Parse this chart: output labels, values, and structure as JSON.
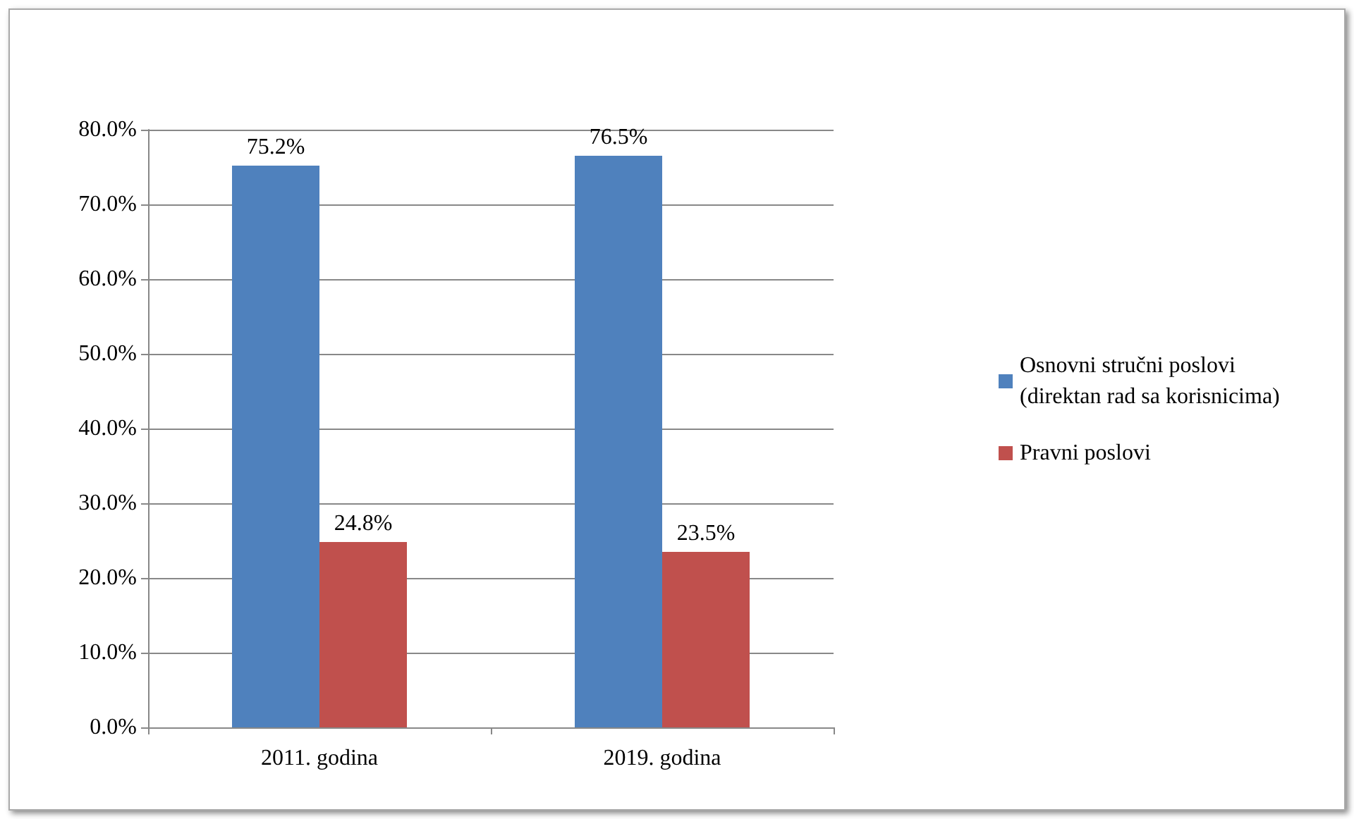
{
  "chart_data": {
    "type": "bar",
    "categories": [
      "2011. godina",
      "2019. godina"
    ],
    "series": [
      {
        "name": "Osnovni stručni poslovi (direktan rad sa korisnicima)",
        "color": "#4f81bd",
        "values": [
          75.2,
          76.5
        ],
        "value_labels": [
          "75.2%",
          "76.5%"
        ]
      },
      {
        "name": "Pravni poslovi",
        "color": "#c0504d",
        "values": [
          24.8,
          23.5
        ],
        "value_labels": [
          "24.8%",
          "23.5%"
        ]
      }
    ],
    "ylim": [
      0,
      80
    ],
    "yticks": [
      {
        "value": 0,
        "label": "0.0%"
      },
      {
        "value": 10,
        "label": "10.0%"
      },
      {
        "value": 20,
        "label": "20.0%"
      },
      {
        "value": 30,
        "label": "30.0%"
      },
      {
        "value": 40,
        "label": "40.0%"
      },
      {
        "value": 50,
        "label": "50.0%"
      },
      {
        "value": 60,
        "label": "60.0%"
      },
      {
        "value": 70,
        "label": "70.0%"
      },
      {
        "value": 80,
        "label": "80.0%"
      }
    ],
    "grid": "y",
    "legend": "right"
  }
}
